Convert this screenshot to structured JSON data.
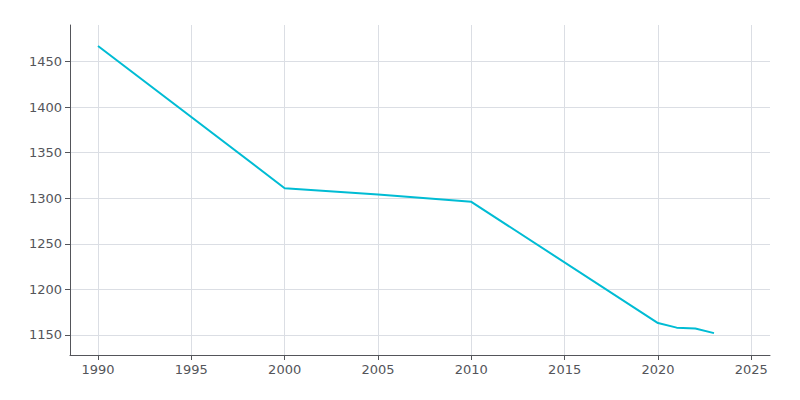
{
  "chart_data": {
    "type": "line",
    "x": [
      1990,
      2000,
      2005,
      2010,
      2020,
      2021,
      2022,
      2023
    ],
    "values": [
      1467,
      1311,
      1304,
      1296,
      1163,
      1158,
      1157,
      1152
    ],
    "color": "#00BCD4",
    "xlim": [
      1988.5,
      2026
    ],
    "ylim": [
      1128,
      1490
    ],
    "xticks": [
      1990,
      1995,
      2000,
      2005,
      2010,
      2015,
      2020,
      2025
    ],
    "yticks": [
      1150,
      1200,
      1250,
      1300,
      1350,
      1400,
      1450
    ],
    "grid": true
  }
}
